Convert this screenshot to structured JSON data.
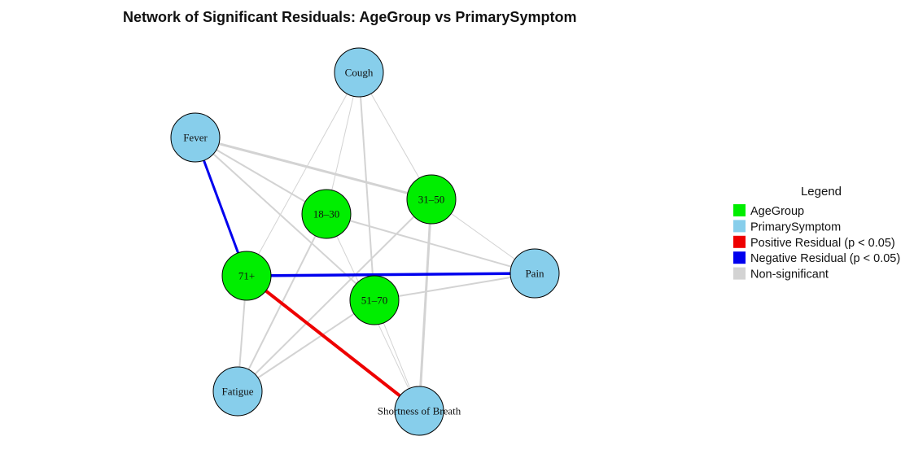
{
  "title": "Network of Significant Residuals: AgeGroup vs PrimarySymptom",
  "colors": {
    "age_group": "#00ee00",
    "primary_symptom": "#87ceeb",
    "positive": "#ee0000",
    "negative": "#0000ee",
    "nonsig": "#d3d3d3"
  },
  "nodes": [
    {
      "id": "cough",
      "label": "Cough",
      "group": "primary_symptom"
    },
    {
      "id": "fever",
      "label": "Fever",
      "group": "primary_symptom"
    },
    {
      "id": "g31_50",
      "label": "31–50",
      "group": "age_group"
    },
    {
      "id": "g18_30",
      "label": "18–30",
      "group": "age_group"
    },
    {
      "id": "g71",
      "label": "71+",
      "group": "age_group"
    },
    {
      "id": "pain",
      "label": "Pain",
      "group": "primary_symptom"
    },
    {
      "id": "g51_70",
      "label": "51–70",
      "group": "age_group"
    },
    {
      "id": "fatigue",
      "label": "Fatigue",
      "group": "primary_symptom"
    },
    {
      "id": "sob",
      "label": "Shortness of Breath",
      "group": "primary_symptom"
    }
  ],
  "edges": [
    {
      "from": "cough",
      "to": "g18_30",
      "type": "nonsig",
      "weight": 1
    },
    {
      "from": "cough",
      "to": "g31_50",
      "type": "nonsig",
      "weight": 1
    },
    {
      "from": "cough",
      "to": "g51_70",
      "type": "nonsig",
      "weight": 2
    },
    {
      "from": "cough",
      "to": "g71",
      "type": "nonsig",
      "weight": 1
    },
    {
      "from": "fever",
      "to": "g31_50",
      "type": "nonsig",
      "weight": 3
    },
    {
      "from": "fever",
      "to": "g18_30",
      "type": "nonsig",
      "weight": 2
    },
    {
      "from": "fever",
      "to": "g51_70",
      "type": "nonsig",
      "weight": 2
    },
    {
      "from": "fever",
      "to": "g71",
      "type": "negative",
      "weight": 3
    },
    {
      "from": "g71",
      "to": "pain",
      "type": "negative",
      "weight": 3.5
    },
    {
      "from": "g71",
      "to": "sob",
      "type": "positive",
      "weight": 4
    },
    {
      "from": "g71",
      "to": "fatigue",
      "type": "nonsig",
      "weight": 2
    },
    {
      "from": "g18_30",
      "to": "pain",
      "type": "nonsig",
      "weight": 2
    },
    {
      "from": "g18_30",
      "to": "fatigue",
      "type": "nonsig",
      "weight": 2
    },
    {
      "from": "g18_30",
      "to": "sob",
      "type": "nonsig",
      "weight": 1
    },
    {
      "from": "g31_50",
      "to": "pain",
      "type": "nonsig",
      "weight": 1
    },
    {
      "from": "g31_50",
      "to": "fatigue",
      "type": "nonsig",
      "weight": 2
    },
    {
      "from": "g31_50",
      "to": "sob",
      "type": "nonsig",
      "weight": 3
    },
    {
      "from": "g51_70",
      "to": "pain",
      "type": "nonsig",
      "weight": 2
    },
    {
      "from": "g51_70",
      "to": "fatigue",
      "type": "nonsig",
      "weight": 2
    },
    {
      "from": "g51_70",
      "to": "sob",
      "type": "nonsig",
      "weight": 1
    }
  ],
  "legend": {
    "title": "Legend",
    "items": [
      {
        "label": "AgeGroup",
        "color_key": "age_group"
      },
      {
        "label": "PrimarySymptom",
        "color_key": "primary_symptom"
      },
      {
        "label": "Positive Residual (p < 0.05)",
        "color_key": "positive"
      },
      {
        "label": "Negative Residual (p < 0.05)",
        "color_key": "negative"
      },
      {
        "label": "Non-significant",
        "color_key": "nonsig"
      }
    ]
  }
}
